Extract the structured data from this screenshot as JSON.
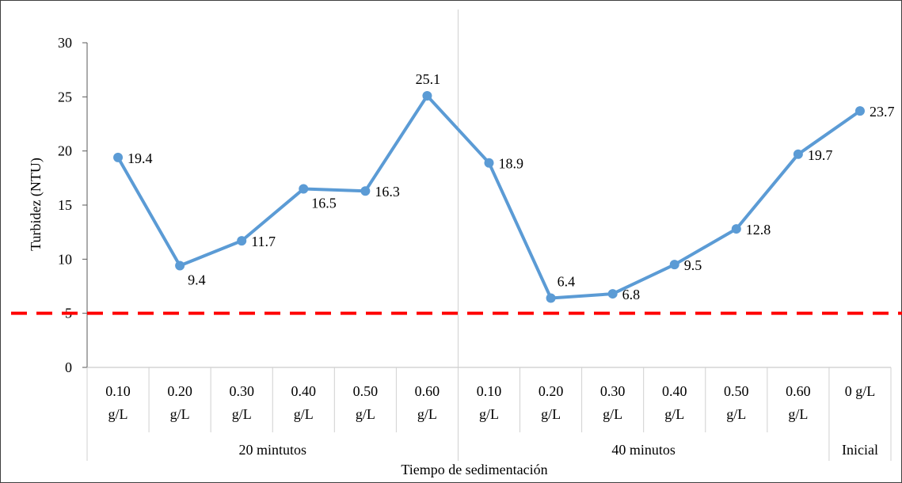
{
  "chart_data": {
    "type": "line",
    "ylabel": "Turbidez (NTU)",
    "xlabel": "Tiempo de sedimentación",
    "ylim": [
      0,
      30
    ],
    "yticks": [
      0,
      5,
      10,
      15,
      20,
      25,
      30
    ],
    "grid": false,
    "legend": "none",
    "categories": [
      {
        "line1": "0.10",
        "line2": "g/L"
      },
      {
        "line1": "0.20",
        "line2": "g/L"
      },
      {
        "line1": "0.30",
        "line2": "g/L"
      },
      {
        "line1": "0.40",
        "line2": "g/L"
      },
      {
        "line1": "0.50",
        "line2": "g/L"
      },
      {
        "line1": "0.60",
        "line2": "g/L"
      },
      {
        "line1": "0.10",
        "line2": "g/L"
      },
      {
        "line1": "0.20",
        "line2": "g/L"
      },
      {
        "line1": "0.30",
        "line2": "g/L"
      },
      {
        "line1": "0.40",
        "line2": "g/L"
      },
      {
        "line1": "0.50",
        "line2": "g/L"
      },
      {
        "line1": "0.60",
        "line2": "g/L"
      },
      {
        "line1": "0 g/L",
        "line2": ""
      }
    ],
    "groups": [
      {
        "label": "20 mintutos",
        "count": 6
      },
      {
        "label": "40 minutos",
        "count": 6
      },
      {
        "label": "Inicial",
        "count": 1
      }
    ],
    "series": [
      {
        "values": [
          19.4,
          9.4,
          11.7,
          16.5,
          16.3,
          25.1,
          18.9,
          6.4,
          6.8,
          9.5,
          12.8,
          19.7,
          23.7
        ],
        "labels": [
          "19.4",
          "9.4",
          "11.7",
          "16.5",
          "16.3",
          "25.1",
          "18.9",
          "6.4",
          "6.8",
          "9.5",
          "12.8",
          "19.7",
          "23.7"
        ],
        "color": "#5b9bd5"
      }
    ],
    "reference_line": {
      "value": 5,
      "color": "#ff0000",
      "style": "dashed"
    }
  }
}
